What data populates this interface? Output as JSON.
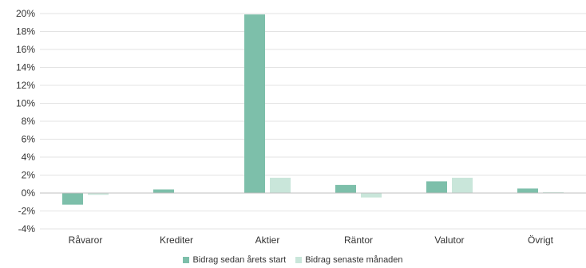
{
  "chart_data": {
    "type": "bar",
    "categories": [
      "Råvaror",
      "Krediter",
      "Aktier",
      "Räntor",
      "Valutor",
      "Övrigt"
    ],
    "series": [
      {
        "name": "Bidrag sedan årets start",
        "color": "#7dbfaa",
        "values": [
          -1.3,
          0.4,
          19.9,
          0.9,
          1.3,
          0.5
        ]
      },
      {
        "name": "Bidrag senaste månaden",
        "color": "#c9e6da",
        "values": [
          -0.2,
          0.0,
          1.7,
          -0.5,
          1.7,
          0.1
        ]
      }
    ],
    "ylim": [
      -4,
      20
    ],
    "yticks": [
      "20%",
      "18%",
      "16%",
      "14%",
      "12%",
      "10%",
      "8%",
      "6%",
      "4%",
      "2%",
      "0%",
      "-2%",
      "-4%"
    ],
    "grid": true,
    "legend_position": "bottom",
    "title": "",
    "xlabel": "",
    "ylabel": ""
  }
}
